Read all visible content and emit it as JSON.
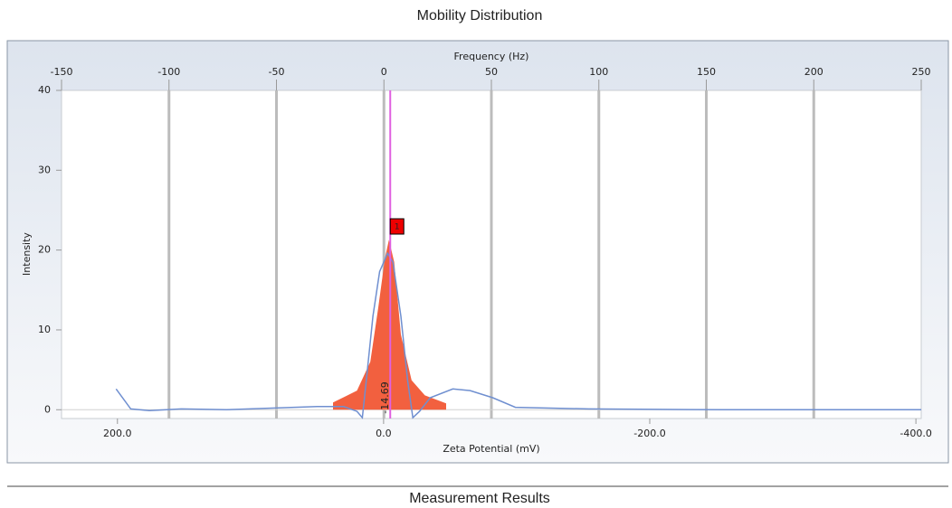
{
  "chart_data": {
    "type": "line",
    "title": "Mobility Distribution",
    "xlabel": "Zeta Potential (mV)",
    "x2label": "Frequency (Hz)",
    "ylabel": "Intensity",
    "xlim": [
      242,
      -404
    ],
    "xticks": [
      {
        "value": 200,
        "label": "200.0"
      },
      {
        "value": 0,
        "label": "0.0"
      },
      {
        "value": -200,
        "label": "-200.0"
      },
      {
        "value": -400,
        "label": "-400.0"
      }
    ],
    "x2lim": [
      -150,
      250
    ],
    "x2ticks": [
      -150,
      -100,
      -50,
      0,
      50,
      100,
      150,
      200,
      250
    ],
    "ylim": [
      -1.1,
      40
    ],
    "yticks": [
      0,
      10,
      20,
      30,
      40
    ],
    "grid": true,
    "series": [
      {
        "color": "#f2603f",
        "fill": true,
        "x": [
          38,
          20,
          10,
          4,
          -1,
          -4,
          -8,
          -13,
          -21,
          -31,
          -47
        ],
        "values": [
          0.9,
          2.4,
          6,
          12.8,
          19,
          21.3,
          18.5,
          9.4,
          3.7,
          1.8,
          0.8
        ]
      },
      {
        "color": "#6f8fd0",
        "fill": false,
        "x": [
          201,
          190,
          176,
          152,
          118,
          84,
          50,
          30,
          20,
          16,
          13,
          8,
          3,
          -3,
          -7,
          -13,
          -18,
          -22,
          -27,
          -35,
          -52,
          -65,
          -82,
          -99,
          -154,
          -256,
          -404
        ],
        "values": [
          2.6,
          0.1,
          -0.1,
          0.1,
          0,
          0.2,
          0.4,
          0.4,
          -0.2,
          -1,
          3.7,
          11.7,
          17.3,
          19.6,
          18.5,
          11.7,
          3.7,
          -1,
          -0.2,
          1.5,
          2.6,
          2.4,
          1.5,
          0.3,
          0.1,
          0,
          0
        ]
      }
    ],
    "peaks": [
      {
        "x": -5,
        "color": "#e060e0",
        "marker": "1",
        "annotation": "-14.69"
      }
    ]
  },
  "section_title": "Measurement Results"
}
